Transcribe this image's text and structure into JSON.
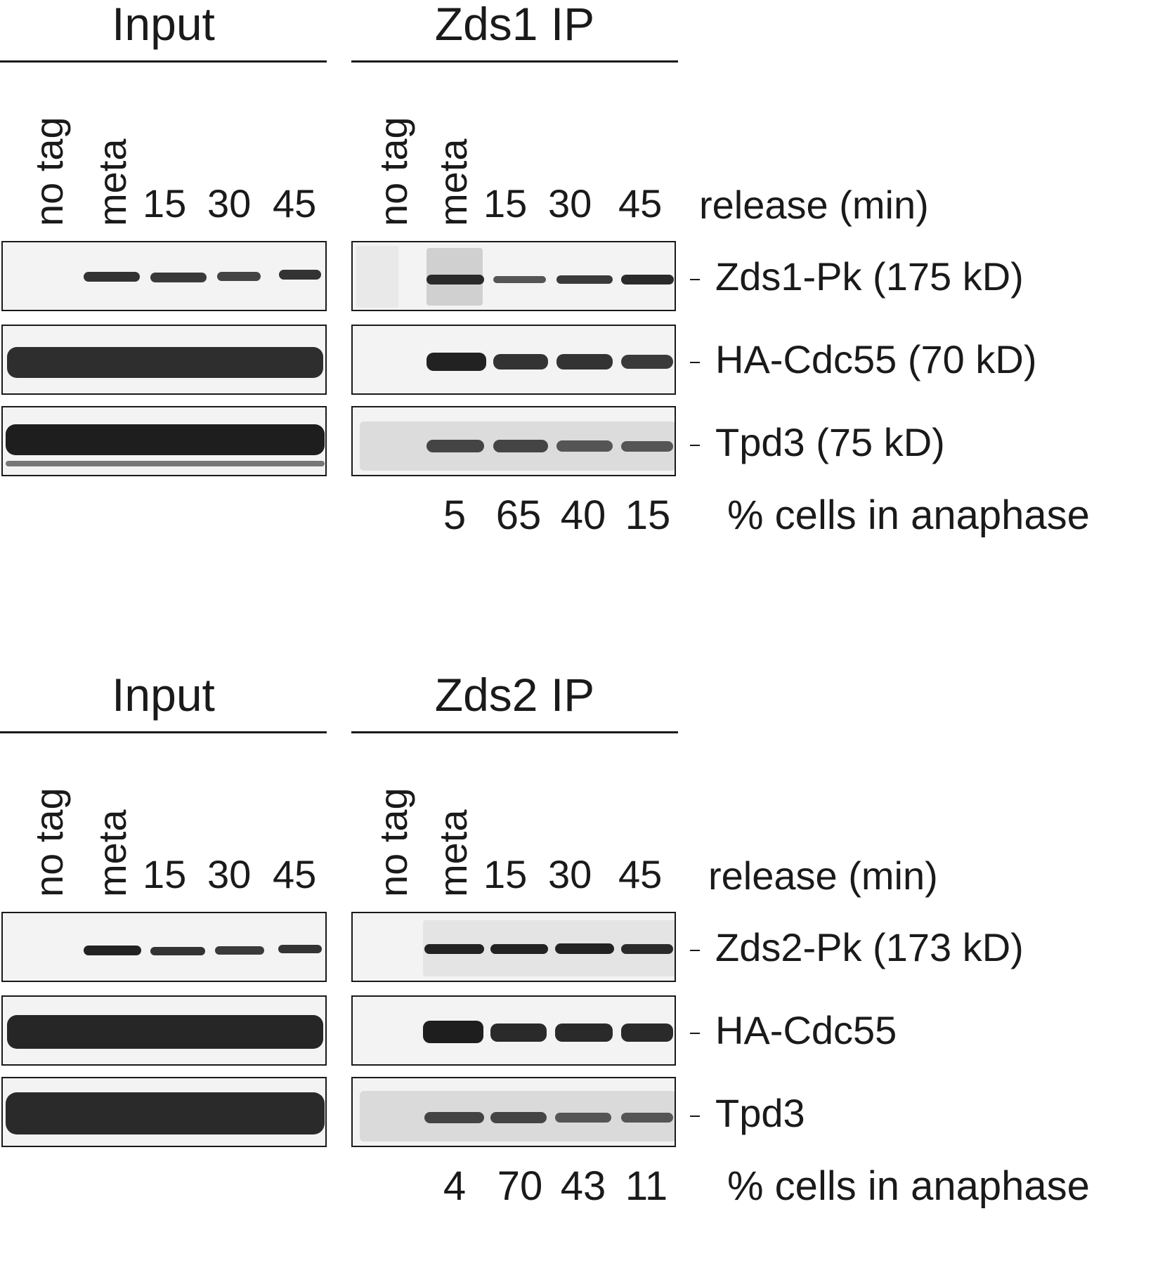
{
  "panels": [
    {
      "input_header": "Input",
      "ip_header": "Zds1 IP",
      "lanes": [
        "no tag",
        "meta",
        "15",
        "30",
        "45"
      ],
      "release_label": "release (min)",
      "proteins": [
        "Zds1-Pk (175 kD)",
        "HA-Cdc55 (70 kD)",
        "Tpd3 (75 kD)"
      ],
      "anaphase_values": [
        "5",
        "65",
        "40",
        "15"
      ],
      "anaphase_label": "% cells in anaphase"
    },
    {
      "input_header": "Input",
      "ip_header": "Zds2 IP",
      "lanes": [
        "no tag",
        "meta",
        "15",
        "30",
        "45"
      ],
      "release_label": "release (min)",
      "proteins": [
        "Zds2-Pk (173 kD)",
        "HA-Cdc55",
        "Tpd3"
      ],
      "anaphase_values": [
        "4",
        "70",
        "43",
        "11"
      ],
      "anaphase_label": "% cells in anaphase"
    }
  ]
}
